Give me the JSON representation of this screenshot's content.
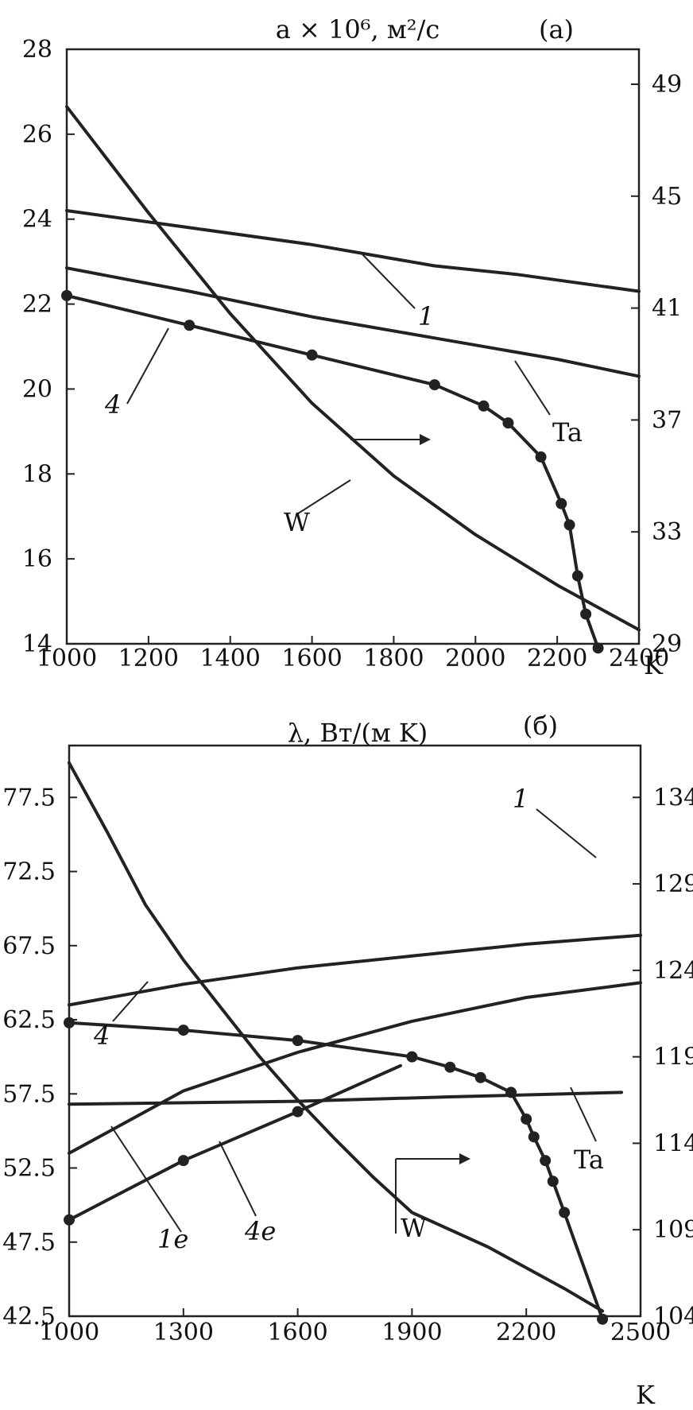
{
  "chart_data": [
    {
      "type": "line",
      "panel_label": "(а)",
      "title": "a × 10⁶, м²/с",
      "xlabel": "K",
      "x_ticks": [
        1000,
        1200,
        1400,
        1600,
        1800,
        2000,
        2200,
        2400
      ],
      "y_left_ticks": [
        14,
        16,
        18,
        20,
        22,
        24,
        26,
        28
      ],
      "y_right_ticks": [
        29,
        33,
        37,
        41,
        45,
        49
      ],
      "xlim": [
        1000,
        2400
      ],
      "ylim_left": [
        14,
        28
      ],
      "ylim_right": [
        29,
        50.25
      ],
      "series": [
        {
          "name": "1",
          "axis": "left",
          "x": [
            1000,
            1300,
            1600,
            1900,
            2100,
            2400
          ],
          "y": [
            24.2,
            23.8,
            23.4,
            22.9,
            22.7,
            22.3
          ]
        },
        {
          "name": "Ta",
          "axis": "left",
          "x": [
            1000,
            1300,
            1600,
            1900,
            2200,
            2400
          ],
          "y": [
            22.85,
            22.3,
            21.7,
            21.2,
            20.7,
            20.3
          ]
        },
        {
          "name": "4",
          "axis": "left",
          "markers": true,
          "x": [
            1000,
            1300,
            1600,
            1900,
            2020,
            2080,
            2160,
            2210,
            2230,
            2250,
            2270,
            2300
          ],
          "y": [
            22.2,
            21.5,
            20.8,
            20.1,
            19.6,
            19.2,
            18.4,
            17.3,
            16.8,
            15.6,
            14.7,
            13.9
          ]
        },
        {
          "name": "W",
          "axis": "right",
          "x": [
            1000,
            1200,
            1400,
            1600,
            1800,
            2000,
            2200,
            2400
          ],
          "y": [
            48.2,
            44.4,
            40.8,
            37.6,
            35.0,
            32.9,
            31.1,
            29.5
          ]
        }
      ]
    },
    {
      "type": "line",
      "panel_label": "(б)",
      "title": "λ, Вт/(м K)",
      "xlabel": "K",
      "x_ticks": [
        1000,
        1300,
        1600,
        1900,
        2200,
        2500
      ],
      "y_left_ticks": [
        42.5,
        47.5,
        52.5,
        57.5,
        62.5,
        67.5,
        72.5,
        77.5
      ],
      "y_right_ticks": [
        104,
        109,
        114,
        119,
        124,
        129,
        134
      ],
      "xlim": [
        1000,
        2500
      ],
      "ylim_left": [
        42.5,
        81
      ],
      "ylim_right": [
        104,
        137
      ],
      "series": [
        {
          "name": "1",
          "axis": "left",
          "x": [
            1000,
            1300,
            1600,
            1900,
            2200,
            2500
          ],
          "y": [
            63.5,
            64.9,
            66.0,
            66.8,
            67.6,
            68.2
          ]
        },
        {
          "name": "Ta",
          "axis": "left",
          "x": [
            1000,
            1600,
            2000,
            2450
          ],
          "y": [
            56.8,
            57.0,
            57.3,
            57.6
          ]
        },
        {
          "name": "1e",
          "axis": "left",
          "x": [
            1000,
            1300,
            1600,
            1900,
            2200,
            2500
          ],
          "y": [
            53.5,
            57.7,
            60.3,
            62.4,
            64.0,
            65.0
          ]
        },
        {
          "name": "4e",
          "axis": "left",
          "markers_at": [
            1000,
            1300,
            1600
          ],
          "x": [
            1000,
            1300,
            1600,
            1870
          ],
          "y": [
            49.0,
            53.0,
            56.3,
            59.4
          ]
        },
        {
          "name": "4",
          "axis": "left",
          "markers": true,
          "x": [
            1000,
            1300,
            1600,
            1900,
            2000,
            2080,
            2160,
            2200,
            2220,
            2250,
            2270,
            2300,
            2400
          ],
          "y": [
            62.3,
            61.8,
            61.1,
            60.0,
            59.3,
            58.6,
            57.6,
            55.8,
            54.6,
            53.0,
            51.6,
            49.5,
            42.3
          ]
        },
        {
          "name": "W",
          "axis": "right",
          "x": [
            1000,
            1100,
            1200,
            1300,
            1400,
            1500,
            1600,
            1700,
            1800,
            1900,
            2000,
            2100,
            2200,
            2300,
            2400
          ],
          "y": [
            136.0,
            132.0,
            127.8,
            124.6,
            121.8,
            119.0,
            116.5,
            114.2,
            112.0,
            110.0,
            109.0,
            108.0,
            106.8,
            105.6,
            104.3
          ]
        }
      ]
    }
  ],
  "panel_a": {
    "annotation_W": "W",
    "annotation_Ta": "Ta",
    "annotation_1": "1",
    "annotation_4": "4"
  },
  "panel_b": {
    "annotation_W": "W",
    "annotation_Ta": "Ta",
    "annotation_1": "1",
    "annotation_4": "4",
    "annotation_1e": "1e",
    "annotation_4e": "4e"
  }
}
